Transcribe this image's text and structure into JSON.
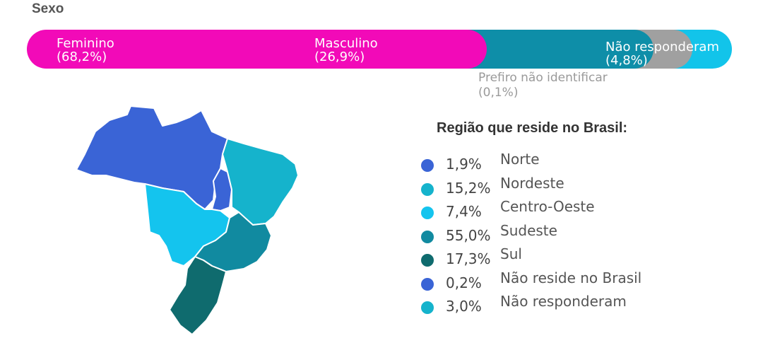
{
  "colors": {
    "feminino": "#f20ab8",
    "masculino": "#0e8ea8",
    "prefiro": "#a0a0a0",
    "nao_responderam": "#12c4ea",
    "norte": "#3a64d6",
    "nordeste": "#15b3cc",
    "centro_oeste": "#14c4ee",
    "sudeste": "#118aa0",
    "sul": "#0f6b6e"
  },
  "chart_data": [
    {
      "type": "bar",
      "title": "Sexo",
      "categories": [
        "Feminino",
        "Masculino",
        "Prefiro não identificar",
        "Não responderam"
      ],
      "values": [
        68.2,
        26.9,
        0.1,
        4.8
      ],
      "value_labels": [
        "(68,2%)",
        "(26,9%)",
        "(0,1%)",
        "(4,8%)"
      ],
      "unit": "%"
    },
    {
      "type": "table",
      "title": "Região que reside no Brasil:",
      "rows": [
        {
          "pct": "1,9%",
          "name": "Norte",
          "value": 1.9,
          "color_key": "norte"
        },
        {
          "pct": "15,2%",
          "name": "Nordeste",
          "value": 15.2,
          "color_key": "nordeste"
        },
        {
          "pct": "7,4%",
          "name": "Centro-Oeste",
          "value": 7.4,
          "color_key": "centro_oeste"
        },
        {
          "pct": "55,0%",
          "name": "Sudeste",
          "value": 55.0,
          "color_key": "sudeste"
        },
        {
          "pct": "17,3%",
          "name": "Sul",
          "value": 17.3,
          "color_key": "sul"
        },
        {
          "pct": "0,2%",
          "name": "Não reside no Brasil",
          "value": 0.2,
          "color_key": "norte"
        },
        {
          "pct": "3,0%",
          "name": "Não responderam",
          "value": 3.0,
          "color_key": "nordeste"
        }
      ]
    }
  ]
}
